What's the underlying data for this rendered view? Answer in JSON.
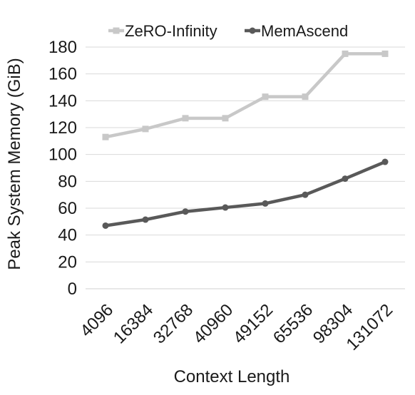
{
  "chart_data": {
    "type": "line",
    "categories": [
      "4096",
      "16384",
      "32768",
      "40960",
      "49152",
      "65536",
      "98304",
      "131072"
    ],
    "series": [
      {
        "name": "ZeRO-Infinity",
        "values": [
          113,
          119,
          127,
          127,
          143,
          143,
          175,
          175
        ],
        "color": "#c8c8c8",
        "marker": "square"
      },
      {
        "name": "MemAscend",
        "values": [
          47,
          51.5,
          57.5,
          60.5,
          63.5,
          70,
          82,
          94.5
        ],
        "color": "#595959",
        "marker": "circle"
      }
    ],
    "title": "",
    "xlabel": "Context Length",
    "ylabel": "Peak System Memory (GiB)",
    "ylim": [
      0,
      180
    ],
    "yticks": [
      0,
      20,
      40,
      60,
      80,
      100,
      120,
      140,
      160,
      180
    ],
    "grid": true,
    "legend_position": "top-center"
  }
}
